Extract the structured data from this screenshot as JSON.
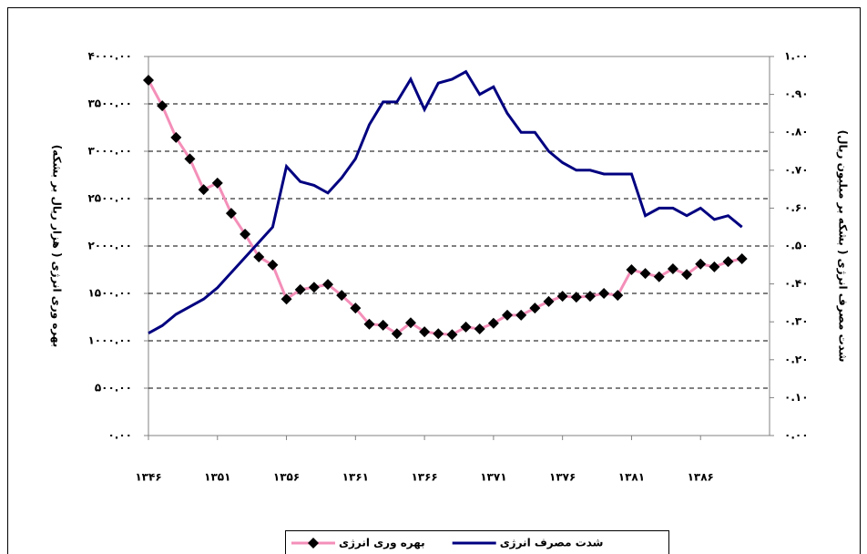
{
  "chart_data": {
    "type": "line",
    "y_label": "بهره وری انرژی ( هزار ریال بر بشکه)",
    "y2_label": "شدت مصرف انرژی ( بشکه بر میلیون ریال)",
    "x": [
      1346,
      1347,
      1348,
      1349,
      1350,
      1351,
      1352,
      1353,
      1354,
      1355,
      1356,
      1357,
      1358,
      1359,
      1360,
      1361,
      1362,
      1363,
      1364,
      1365,
      1366,
      1367,
      1368,
      1369,
      1370,
      1371,
      1372,
      1373,
      1374,
      1375,
      1376,
      1377,
      1378,
      1379,
      1380,
      1381,
      1382,
      1383,
      1384,
      1385,
      1386,
      1387,
      1388,
      1389
    ],
    "series": [
      {
        "name": "بهره وری انرژی",
        "color": "#f48fb9",
        "marker": "diamond",
        "marker_color": "#000000",
        "values": [
          3750,
          3480,
          3145,
          2920,
          2595,
          2665,
          2345,
          2125,
          1885,
          1800,
          1440,
          1540,
          1565,
          1595,
          1480,
          1345,
          1175,
          1165,
          1075,
          1190,
          1095,
          1075,
          1065,
          1145,
          1125,
          1185,
          1270,
          1270,
          1345,
          1415,
          1470,
          1460,
          1470,
          1500,
          1480,
          1750,
          1710,
          1675,
          1760,
          1700,
          1810,
          1780,
          1835,
          1865
        ]
      },
      {
        "name": "شدت مصرف انرژی",
        "color": "#000080",
        "axis": "y2",
        "values": [
          0.27,
          0.29,
          0.32,
          0.34,
          0.36,
          0.39,
          0.43,
          0.47,
          0.51,
          0.55,
          0.71,
          0.67,
          0.66,
          0.64,
          0.68,
          0.73,
          0.82,
          0.88,
          0.88,
          0.94,
          0.86,
          0.93,
          0.94,
          0.96,
          0.9,
          0.92,
          0.85,
          0.8,
          0.8,
          0.75,
          0.72,
          0.7,
          0.7,
          0.69,
          0.69,
          0.69,
          0.58,
          0.6,
          0.6,
          0.58,
          0.6,
          0.57,
          0.58,
          0.55
        ]
      }
    ],
    "xlim": [
      1346,
      1391
    ],
    "xticks": [
      {
        "value": 1346,
        "label": "۱۳۴۶"
      },
      {
        "value": 1351,
        "label": "۱۳۵۱"
      },
      {
        "value": 1356,
        "label": "۱۳۵۶"
      },
      {
        "value": 1361,
        "label": "۱۳۶۱"
      },
      {
        "value": 1366,
        "label": "۱۳۶۶"
      },
      {
        "value": 1371,
        "label": "۱۳۷۱"
      },
      {
        "value": 1376,
        "label": "۱۳۷۶"
      },
      {
        "value": 1381,
        "label": "۱۳۸۱"
      },
      {
        "value": 1386,
        "label": "۱۳۸۶"
      }
    ],
    "ylim": [
      0,
      4000
    ],
    "yticks": [
      {
        "value": 0,
        "label": "۰.۰۰"
      },
      {
        "value": 500,
        "label": "۵۰۰.۰۰"
      },
      {
        "value": 1000,
        "label": "۱۰۰۰.۰۰"
      },
      {
        "value": 1500,
        "label": "۱۵۰۰.۰۰"
      },
      {
        "value": 2000,
        "label": "۲۰۰۰.۰۰"
      },
      {
        "value": 2500,
        "label": "۲۵۰۰.۰۰"
      },
      {
        "value": 3000,
        "label": "۳۰۰۰.۰۰"
      },
      {
        "value": 3500,
        "label": "۳۵۰۰.۰۰"
      },
      {
        "value": 4000,
        "label": "۴۰۰۰.۰۰"
      }
    ],
    "y2lim": [
      0,
      1
    ],
    "y2ticks": [
      {
        "value": 0,
        "label": "۰.۰۰"
      },
      {
        "value": 0.1,
        "label": "۰.۱۰"
      },
      {
        "value": 0.2,
        "label": "۰.۲۰"
      },
      {
        "value": 0.3,
        "label": "۰.۳۰"
      },
      {
        "value": 0.4,
        "label": "۰.۴۰"
      },
      {
        "value": 0.5,
        "label": "۰.۵۰"
      },
      {
        "value": 0.6,
        "label": "۰.۶۰"
      },
      {
        "value": 0.7,
        "label": "۰.۷۰"
      },
      {
        "value": 0.8,
        "label": "۰.۸۰"
      },
      {
        "value": 0.9,
        "label": "۰.۹۰"
      },
      {
        "value": 1,
        "label": "۱.۰۰"
      }
    ],
    "grid": true,
    "legend": "bottom"
  }
}
